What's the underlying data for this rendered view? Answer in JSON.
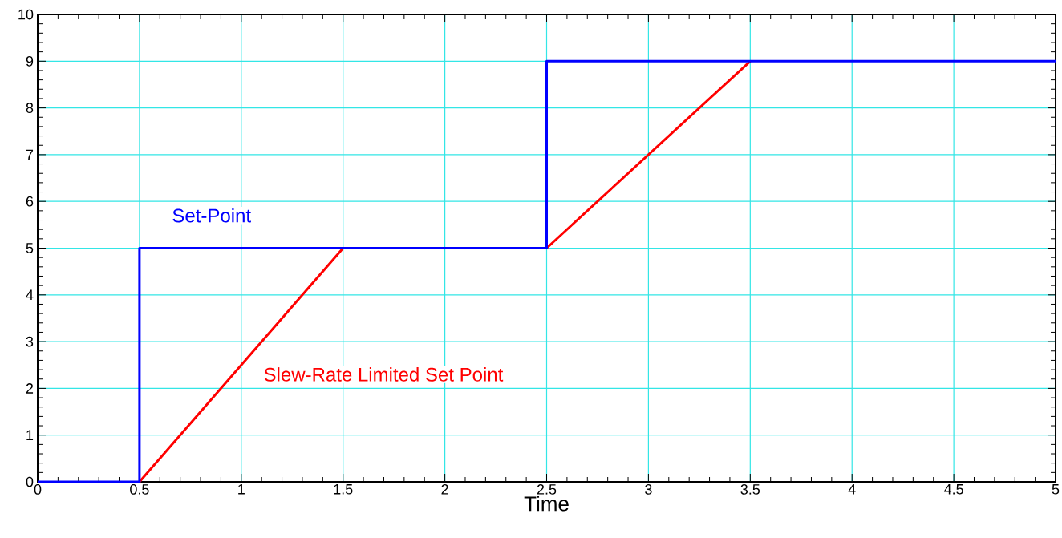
{
  "chart_data": {
    "type": "line",
    "xlabel": "Time",
    "xlim": [
      0,
      5
    ],
    "ylim": [
      0,
      10
    ],
    "xticks": [
      0,
      0.5,
      1,
      1.5,
      2,
      2.5,
      3,
      3.5,
      4,
      4.5,
      5
    ],
    "yticks": [
      0,
      1,
      2,
      3,
      4,
      5,
      6,
      7,
      8,
      9,
      10
    ],
    "grid": true,
    "marker": "none",
    "line_style": "solid",
    "series": [
      {
        "name": "Slew-Rate Limited Set Point",
        "color": "#ff0000",
        "x": [
          0.5,
          1.5,
          2.5,
          3.5
        ],
        "values": [
          0,
          5,
          5,
          9
        ]
      },
      {
        "name": "Set-Point",
        "color": "#0000ff",
        "x": [
          0,
          0.5,
          0.5,
          2.5,
          2.5,
          5
        ],
        "values": [
          0,
          0,
          5,
          5,
          9,
          9
        ]
      }
    ]
  }
}
